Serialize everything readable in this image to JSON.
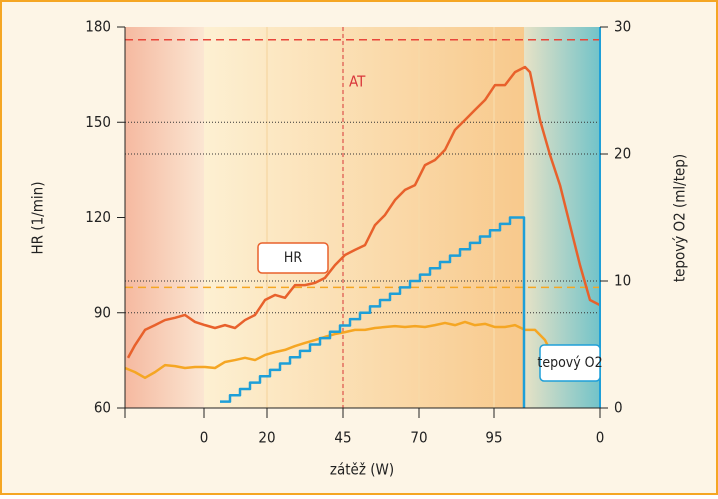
{
  "chart_data": {
    "type": "line",
    "ylabel": "HR (1/min)",
    "y2label": "tepový O2 (ml/tep)",
    "xlabel": "zátěž (W)",
    "xlim": [
      0,
      475
    ],
    "xticks": [
      {
        "value": 79,
        "label": "0"
      },
      {
        "value": 142,
        "label": "20"
      },
      {
        "value": 218,
        "label": "45"
      },
      {
        "value": 294,
        "label": "70"
      },
      {
        "value": 369,
        "label": "95"
      },
      {
        "value": 475,
        "label": "0"
      }
    ],
    "ylim": [
      60,
      180
    ],
    "yticks": [
      60,
      90,
      120,
      150,
      180
    ],
    "y2lim": [
      0,
      30
    ],
    "y2ticks": [
      0,
      10,
      20,
      30
    ],
    "dotted_lines": [
      90,
      100,
      140,
      150
    ],
    "reference_lines": [
      {
        "value": 176,
        "color": "#e8463a"
      },
      {
        "value": 98,
        "color": "#f5a623"
      }
    ],
    "vline": {
      "x": 218,
      "label": "AT",
      "color": "#d9363a"
    },
    "series": [
      {
        "name": "HR",
        "color": "#e8612c",
        "x": [
          3,
          10,
          20,
          30,
          40,
          50,
          60,
          70,
          80,
          90,
          100,
          110,
          120,
          130,
          140,
          150,
          160,
          170,
          180,
          190,
          200,
          210,
          220,
          230,
          240,
          250,
          260,
          270,
          280,
          290,
          300,
          310,
          320,
          330,
          340,
          350,
          360,
          370,
          380,
          390,
          400,
          405,
          415,
          425,
          435,
          445,
          455,
          465,
          475
        ],
        "values": [
          75.8,
          79.8,
          84.6,
          86.1,
          87.7,
          88.4,
          89.3,
          87.1,
          86.1,
          85.2,
          86.1,
          85.2,
          87.7,
          89.3,
          94.0,
          95.6,
          94.7,
          98.7,
          98.7,
          99.4,
          101.0,
          105.0,
          108.2,
          109.8,
          111.3,
          117.6,
          120.8,
          125.5,
          128.7,
          130.2,
          136.5,
          138.1,
          141.3,
          147.6,
          150.7,
          153.9,
          157.0,
          161.7,
          161.7,
          165.8,
          167.4,
          165.8,
          150.7,
          139.7,
          130.2,
          117.6,
          105.0,
          94.0,
          92.4
        ]
      },
      {
        "color": "#f5a623",
        "x": [
          0,
          10,
          20,
          30,
          40,
          50,
          60,
          70,
          80,
          90,
          100,
          110,
          120,
          130,
          140,
          150,
          160,
          170,
          180,
          190,
          200,
          210,
          220,
          230,
          240,
          250,
          260,
          270,
          280,
          290,
          300,
          310,
          320,
          330,
          340,
          350,
          360,
          370,
          380,
          390,
          400,
          410,
          420,
          430,
          440,
          450,
          460,
          475
        ],
        "values": [
          72.6,
          71.3,
          69.5,
          71.3,
          73.5,
          73.2,
          72.6,
          72.9,
          72.9,
          72.6,
          74.5,
          75.1,
          75.8,
          75.1,
          76.7,
          77.6,
          78.3,
          79.5,
          80.5,
          81.4,
          82.4,
          83.3,
          83.9,
          84.6,
          84.6,
          85.2,
          85.5,
          85.8,
          85.5,
          85.8,
          85.5,
          86.1,
          86.8,
          86.1,
          87.1,
          86.1,
          86.5,
          85.5,
          85.5,
          86.1,
          84.6,
          84.6,
          81.4,
          75.1,
          73.5,
          72.6,
          71.3,
          70.4
        ]
      },
      {
        "name": "tepový O2",
        "color": "#1e9fd8",
        "axis": "y2",
        "step": true,
        "x": [
          95,
          105,
          115,
          125,
          135,
          145,
          155,
          165,
          175,
          185,
          195,
          205,
          215,
          225,
          235,
          245,
          255,
          265,
          275,
          285,
          295,
          305,
          315,
          325,
          335,
          345,
          355,
          365,
          375,
          385,
          399
        ],
        "values": [
          0.5,
          1,
          1.5,
          2,
          2.5,
          3,
          3.5,
          4,
          4.5,
          5,
          5.5,
          6,
          6.5,
          7,
          7.5,
          8,
          8.5,
          9,
          9.5,
          10,
          10.5,
          11,
          11.5,
          12,
          12.5,
          13,
          13.5,
          14,
          14.5,
          15,
          0
        ]
      }
    ]
  }
}
